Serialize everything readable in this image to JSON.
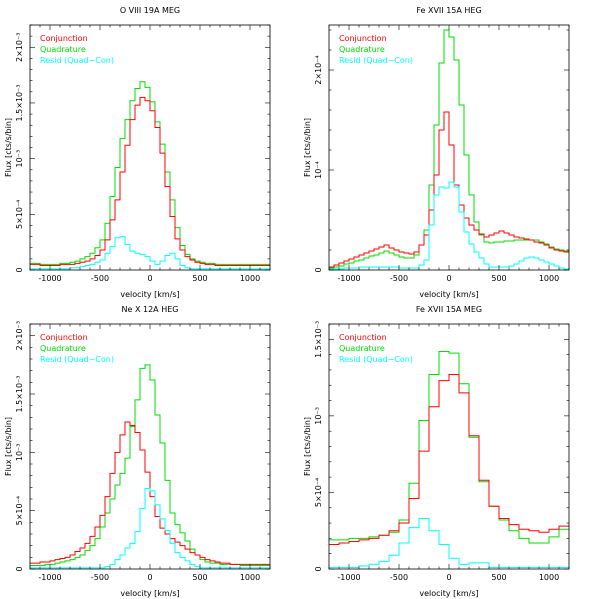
{
  "chart_data": [
    {
      "type": "line",
      "title": "O VIII 19A   MEG",
      "xlabel": "velocity [km/s]",
      "ylabel": "Flux [cts/s/bin]",
      "xlim": [
        -1200,
        1200
      ],
      "ylim": [
        0,
        0.0022
      ],
      "x_ticks": [
        -1000,
        -500,
        0,
        500,
        1000
      ],
      "y_ticks": [
        0,
        0.0005,
        0.001,
        0.0015,
        0.002
      ],
      "y_tick_labels": [
        "0",
        "5×10⁻⁴",
        "10⁻³",
        "1.5×10⁻³",
        "2×10⁻³"
      ],
      "legend_position": "top-left",
      "x": [
        -1175,
        -1125,
        -1075,
        -1025,
        -975,
        -925,
        -875,
        -825,
        -775,
        -725,
        -675,
        -625,
        -575,
        -525,
        -475,
        -425,
        -375,
        -325,
        -275,
        -225,
        -175,
        -125,
        -75,
        -25,
        25,
        75,
        125,
        175,
        225,
        275,
        325,
        375,
        425,
        475,
        525,
        575,
        625,
        675,
        725,
        775,
        825,
        875,
        925,
        975,
        1025,
        1075,
        1125,
        1175
      ],
      "series": [
        {
          "name": "Conjunction",
          "color": "#ff0000",
          "values": [
            5e-05,
            5e-05,
            4e-05,
            4e-05,
            4e-05,
            4e-05,
            5e-05,
            5e-05,
            5e-05,
            6e-05,
            7e-05,
            8e-05,
            0.0001,
            0.00013,
            0.00018,
            0.00027,
            0.00045,
            0.00063,
            0.00088,
            0.00112,
            0.00135,
            0.00148,
            0.00155,
            0.00152,
            0.00143,
            0.00128,
            0.00105,
            0.00075,
            0.00048,
            0.00028,
            0.00018,
            0.00012,
            9e-05,
            7e-05,
            6e-05,
            5e-05,
            5e-05,
            4e-05,
            4e-05,
            4e-05,
            4e-05,
            4e-05,
            4e-05,
            4e-05,
            4e-05,
            4e-05,
            4e-05,
            4e-05
          ]
        },
        {
          "name": "Quadrature",
          "color": "#00dd00",
          "values": [
            6e-05,
            6e-05,
            5e-05,
            5e-05,
            5e-05,
            5e-05,
            6e-05,
            6e-05,
            7e-05,
            8e-05,
            0.0001,
            0.00012,
            0.00015,
            0.0002,
            0.00027,
            0.00042,
            0.00066,
            0.00092,
            0.00118,
            0.00135,
            0.00152,
            0.00163,
            0.00169,
            0.00164,
            0.00151,
            0.00133,
            0.00113,
            0.00088,
            0.00063,
            0.00038,
            0.00022,
            0.00014,
            0.0001,
            8e-05,
            7e-05,
            6e-05,
            6e-05,
            5e-05,
            5e-05,
            5e-05,
            5e-05,
            5e-05,
            5e-05,
            5e-05,
            5e-05,
            5e-05,
            5e-05,
            5e-05
          ]
        },
        {
          "name": "Resid (Quad−Con)",
          "color": "#00ffff",
          "values": [
            1e-05,
            1e-05,
            1e-05,
            1e-05,
            1e-05,
            1e-05,
            1e-05,
            1e-05,
            2e-05,
            2e-05,
            3e-05,
            4e-05,
            5e-05,
            7e-05,
            9e-05,
            0.00015,
            0.00021,
            0.00029,
            0.0003,
            0.00023,
            0.00017,
            0.00015,
            0.00014,
            0.00012,
            8e-05,
            5e-05,
            8e-05,
            0.00013,
            0.00015,
            0.0001,
            4e-05,
            2e-05,
            1e-05,
            1e-05,
            1e-05,
            1e-05,
            1e-05,
            1e-05,
            1e-05,
            1e-05,
            1e-05,
            1e-05,
            1e-05,
            1e-05,
            1e-05,
            1e-05,
            1e-05,
            1e-05
          ]
        }
      ]
    },
    {
      "type": "line",
      "title": "Fe XVII 15A   HEG",
      "xlabel": "velocity [km/s]",
      "ylabel": "Flux [cts/s/bin]",
      "xlim": [
        -1200,
        1200
      ],
      "ylim": [
        0,
        0.000245
      ],
      "x_ticks": [
        -1000,
        -500,
        0,
        500,
        1000
      ],
      "y_ticks": [
        0,
        0.0001,
        0.0002
      ],
      "y_tick_labels": [
        "0",
        "10⁻⁴",
        "2×10⁻⁴"
      ],
      "legend_position": "top-left",
      "x": [
        -1175,
        -1125,
        -1075,
        -1025,
        -975,
        -925,
        -875,
        -825,
        -775,
        -725,
        -675,
        -625,
        -575,
        -525,
        -475,
        -425,
        -375,
        -325,
        -275,
        -225,
        -175,
        -125,
        -75,
        -25,
        25,
        75,
        125,
        175,
        225,
        275,
        325,
        375,
        425,
        475,
        525,
        575,
        625,
        675,
        725,
        775,
        825,
        875,
        925,
        975,
        1025,
        1075,
        1125,
        1175
      ],
      "series": [
        {
          "name": "Conjunction",
          "color": "#ff0000",
          "values": [
            3e-06,
            5e-06,
            7e-06,
            9e-06,
            1.1e-05,
            1.3e-05,
            1.5e-05,
            1.7e-05,
            1.9e-05,
            2.1e-05,
            2.3e-05,
            2.5e-05,
            2.2e-05,
            2e-05,
            1.8e-05,
            1.7e-05,
            1.6e-05,
            1.8e-05,
            2.5e-05,
            3.5e-05,
            6e-05,
            9.5e-05,
            0.00014,
            0.000158,
            0.000125,
            8.5e-05,
            6.5e-05,
            5.2e-05,
            4.5e-05,
            4e-05,
            3.6e-05,
            3.3e-05,
            3.5e-05,
            3.7e-05,
            3.9e-05,
            3.7e-05,
            3.5e-05,
            3.3e-05,
            3.2e-05,
            3.1e-05,
            3e-05,
            2.8e-05,
            2.7e-05,
            2.5e-05,
            2.2e-05,
            2e-05,
            1.9e-05,
            1.8e-05
          ]
        },
        {
          "name": "Quadrature",
          "color": "#00dd00",
          "values": [
            2e-06,
            3e-06,
            4e-06,
            6e-06,
            7e-06,
            9e-06,
            1e-05,
            1.2e-05,
            1.4e-05,
            1.5e-05,
            1.7e-05,
            1.9e-05,
            1.7e-05,
            1.5e-05,
            1.3e-05,
            1.2e-05,
            1.2e-05,
            1.5e-05,
            2.5e-05,
            4e-05,
            8.5e-05,
            0.000145,
            0.000207,
            0.00024,
            0.000233,
            0.00021,
            0.000165,
            0.000115,
            7.5e-05,
            4.8e-05,
            3.5e-05,
            2.8e-05,
            2.7e-05,
            2.8e-05,
            2.8e-05,
            2.9e-05,
            2.9e-05,
            3e-05,
            3e-05,
            3e-05,
            3e-05,
            3e-05,
            2.8e-05,
            2.6e-05,
            2.3e-05,
            2.1e-05,
            2e-05,
            1.9e-05
          ]
        },
        {
          "name": "Resid (Quad−Con)",
          "color": "#00ffff",
          "values": [
            1e-06,
            1e-06,
            1e-06,
            2e-06,
            2e-06,
            2e-06,
            3e-06,
            3e-06,
            3e-06,
            3e-06,
            3e-06,
            3e-06,
            3e-06,
            3e-06,
            2e-06,
            2e-06,
            2e-06,
            2e-06,
            5e-06,
            1e-05,
            4.5e-05,
            7.5e-05,
            8.3e-05,
            8.2e-05,
            8.8e-05,
            8.3e-05,
            5.8e-05,
            3.8e-05,
            2.6e-05,
            1.8e-05,
            1.2e-05,
            6e-06,
            3e-06,
            3e-06,
            3e-06,
            3e-06,
            4e-06,
            6e-06,
            9e-06,
            1.2e-05,
            1.3e-05,
            1.2e-05,
            1e-05,
            8e-06,
            6e-06,
            4e-06,
            2e-06,
            1e-06
          ]
        }
      ]
    },
    {
      "type": "line",
      "title": "Ne X 12A   HEG",
      "xlabel": "velocity [km/s]",
      "ylabel": "Flux [cts/s/bin]",
      "xlim": [
        -1200,
        1200
      ],
      "ylim": [
        0,
        0.0021
      ],
      "x_ticks": [
        -1000,
        -500,
        0,
        500,
        1000
      ],
      "y_ticks": [
        0,
        0.0005,
        0.001,
        0.0015,
        0.002
      ],
      "y_tick_labels": [
        "0",
        "5×10⁻⁴",
        "10⁻³",
        "1.5×10⁻³",
        "2×10⁻³"
      ],
      "legend_position": "top-left",
      "x": [
        -1175,
        -1125,
        -1075,
        -1025,
        -975,
        -925,
        -875,
        -825,
        -775,
        -725,
        -675,
        -625,
        -575,
        -525,
        -475,
        -425,
        -375,
        -325,
        -275,
        -225,
        -175,
        -125,
        -75,
        -25,
        25,
        75,
        125,
        175,
        225,
        275,
        325,
        375,
        425,
        475,
        525,
        575,
        625,
        675,
        725,
        775,
        825,
        875,
        925,
        975,
        1025,
        1075,
        1125,
        1175
      ],
      "series": [
        {
          "name": "Conjunction",
          "color": "#ff0000",
          "values": [
            5e-05,
            5e-05,
            6e-05,
            6e-05,
            7e-05,
            8e-05,
            9e-05,
            0.0001,
            0.00012,
            0.00015,
            0.00018,
            0.00022,
            0.00028,
            0.00036,
            0.00046,
            0.00062,
            0.00082,
            0.001,
            0.00115,
            0.00126,
            0.00123,
            0.00117,
            0.00102,
            0.00083,
            0.00062,
            0.00045,
            0.00035,
            0.0003,
            0.00026,
            0.00023,
            0.0002,
            0.00017,
            0.00014,
            0.00012,
            0.0001,
            8e-05,
            7e-05,
            6e-05,
            5e-05,
            5e-05,
            4e-05,
            4e-05,
            4e-05,
            4e-05,
            4e-05,
            4e-05,
            4e-05,
            4e-05
          ]
        },
        {
          "name": "Quadrature",
          "color": "#00dd00",
          "values": [
            3e-05,
            3e-05,
            3e-05,
            4e-05,
            4e-05,
            5e-05,
            6e-05,
            7e-05,
            8e-05,
            0.0001,
            0.00012,
            0.00016,
            0.0002,
            0.00026,
            0.00036,
            0.00048,
            0.0006,
            0.00072,
            0.00082,
            0.00095,
            0.00122,
            0.00145,
            0.00172,
            0.00175,
            0.00162,
            0.00132,
            0.00108,
            0.00076,
            0.00048,
            0.00038,
            0.00031,
            0.00024,
            0.00017,
            0.00012,
            8e-05,
            6e-05,
            5e-05,
            5e-05,
            4e-05,
            4e-05,
            4e-05,
            4e-05,
            3e-05,
            3e-05,
            3e-05,
            3e-05,
            3e-05,
            3e-05
          ]
        },
        {
          "name": "Resid (Quad−Con)",
          "color": "#00ffff",
          "values": [
            1e-05,
            1e-05,
            1e-05,
            1e-05,
            1e-05,
            1e-05,
            1e-05,
            1e-05,
            1e-05,
            1e-05,
            1e-05,
            1e-05,
            1e-05,
            1e-05,
            1e-05,
            2e-05,
            4e-05,
            8e-05,
            0.00012,
            0.00018,
            0.00022,
            0.00032,
            0.00052,
            0.00069,
            0.00067,
            0.00055,
            0.00043,
            0.00033,
            0.00022,
            0.00014,
            0.0001,
            7e-05,
            4e-05,
            2e-05,
            1e-05,
            1e-05,
            1e-05,
            1e-05,
            1e-05,
            1e-05,
            1e-05,
            1e-05,
            1e-05,
            1e-05,
            1e-05,
            1e-05,
            1e-05,
            1e-05
          ]
        }
      ]
    },
    {
      "type": "line",
      "title": "Fe XVII 15A   MEG",
      "xlabel": "velocity [km/s]",
      "ylabel": "Flux [cts/s/bin]",
      "xlim": [
        -1200,
        1200
      ],
      "ylim": [
        0,
        0.0016
      ],
      "x_ticks": [
        -1000,
        -500,
        0,
        500,
        1000
      ],
      "y_ticks": [
        0,
        0.0005,
        0.001,
        0.0015
      ],
      "y_tick_labels": [
        "0",
        "5×10⁻⁴",
        "10⁻³",
        "1.5×10⁻³"
      ],
      "legend_position": "top-left",
      "x": [
        -1150,
        -1050,
        -950,
        -850,
        -750,
        -650,
        -550,
        -450,
        -350,
        -250,
        -150,
        -50,
        50,
        150,
        250,
        350,
        450,
        550,
        650,
        750,
        850,
        950,
        1050,
        1150
      ],
      "series": [
        {
          "name": "Conjunction",
          "color": "#ff0000",
          "values": [
            0.00016,
            0.00017,
            0.00018,
            0.00019,
            0.0002,
            0.00022,
            0.00025,
            0.0003,
            0.00046,
            0.00077,
            0.00106,
            0.00123,
            0.00127,
            0.00115,
            0.00087,
            0.00058,
            0.00041,
            0.00033,
            0.00029,
            0.00026,
            0.00025,
            0.00024,
            0.00026,
            0.00028
          ]
        },
        {
          "name": "Quadrature",
          "color": "#00dd00",
          "values": [
            0.00019,
            0.00019,
            0.0002,
            0.0002,
            0.00021,
            0.00022,
            0.00024,
            0.00032,
            0.00056,
            0.00097,
            0.00127,
            0.00142,
            0.00141,
            0.00121,
            0.00086,
            0.00057,
            0.00041,
            0.00032,
            0.00025,
            0.0002,
            0.00017,
            0.00017,
            0.00021,
            0.00026
          ]
        },
        {
          "name": "Resid (Quad−Con)",
          "color": "#00ffff",
          "values": [
            1e-05,
            1e-05,
            1e-05,
            2e-05,
            3e-05,
            5e-05,
            9e-05,
            0.00017,
            0.00027,
            0.00033,
            0.00025,
            0.00016,
            7e-05,
            3e-05,
            4e-05,
            4e-05,
            1e-05,
            1e-05,
            1e-05,
            1e-05,
            1e-05,
            1e-05,
            1e-05,
            1e-05
          ]
        }
      ]
    }
  ]
}
